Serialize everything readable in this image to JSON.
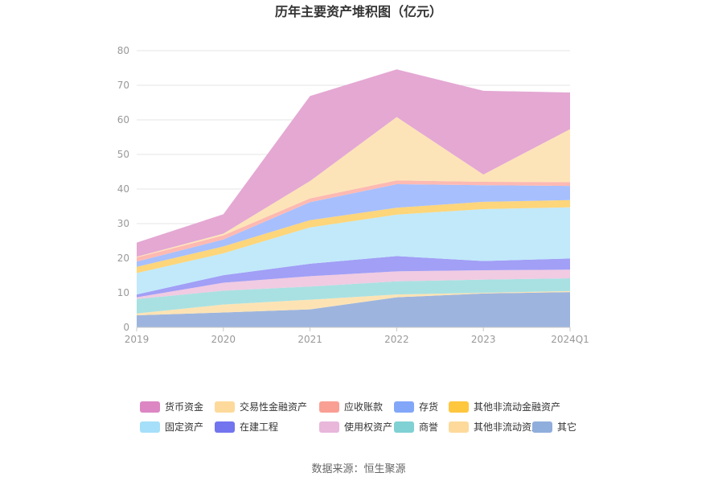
{
  "chart_data": {
    "type": "area",
    "title": "历年主要资产堆积图（亿元）",
    "x": [
      "2019",
      "2020",
      "2021",
      "2022",
      "2023",
      "2024Q1"
    ],
    "ylim": [
      0,
      80
    ],
    "yticks": [
      "0",
      "10",
      "20",
      "30",
      "40",
      "50",
      "60",
      "70",
      "80"
    ],
    "grid": true,
    "stacked": true,
    "legend_position": "bottom",
    "series": [
      {
        "name": "其它",
        "color": "#9DB5DE",
        "values": [
          3.5,
          4.3,
          5.2,
          8.7,
          9.8,
          10.2
        ]
      },
      {
        "name": "其他非流动资产",
        "color": "#FDE3B4",
        "values": [
          0.5,
          2.3,
          2.8,
          0.8,
          0.2,
          0.3
        ]
      },
      {
        "name": "商誉",
        "color": "#A9E1E2",
        "values": [
          4.2,
          4.0,
          3.8,
          3.8,
          3.8,
          3.7
        ]
      },
      {
        "name": "使用权资产",
        "color": "#F0CBE2",
        "values": [
          0.5,
          2.3,
          3.0,
          2.9,
          2.7,
          2.5
        ]
      },
      {
        "name": "在建工程",
        "color": "#A19FF6",
        "values": [
          0.8,
          2.2,
          3.6,
          4.4,
          2.7,
          3.2
        ]
      },
      {
        "name": "固定资产",
        "color": "#C1E9FA",
        "values": [
          6.2,
          6.3,
          10.5,
          12.0,
          15.0,
          14.8
        ]
      },
      {
        "name": "其他非流动金融资产",
        "color": "#FDD57A",
        "values": [
          1.8,
          2.0,
          2.1,
          2.0,
          2.1,
          2.1
        ]
      },
      {
        "name": "存货",
        "color": "#A7BFFD",
        "values": [
          1.5,
          2.0,
          5.2,
          6.8,
          4.8,
          4.1
        ]
      },
      {
        "name": "应收账款",
        "color": "#FDB9B2",
        "values": [
          1.2,
          1.2,
          1.1,
          1.1,
          1.0,
          1.1
        ]
      },
      {
        "name": "交易性金融资产",
        "color": "#FDE4B8",
        "values": [
          0.2,
          0.5,
          5.0,
          18.3,
          2.1,
          15.3
        ]
      },
      {
        "name": "货币资金",
        "color": "#E4A8D3",
        "values": [
          4.1,
          5.6,
          24.6,
          13.8,
          24.2,
          10.6
        ]
      }
    ],
    "source": "数据来源：恒生聚源"
  },
  "legend": [
    {
      "name": "货币资金",
      "color": "#DD86C4"
    },
    {
      "name": "交易性金融资产",
      "color": "#FDDA9B"
    },
    {
      "name": "应收账款",
      "color": "#FA9F94"
    },
    {
      "name": "存货",
      "color": "#83A7F8"
    },
    {
      "name": "其他非流动金融资产",
      "color": "#FEC73E"
    },
    {
      "name": "固定资产",
      "color": "#A5DFF9"
    },
    {
      "name": "在建工程",
      "color": "#7275EE"
    },
    {
      "name": "使用权资产",
      "color": "#E8B7DA"
    },
    {
      "name": "商誉",
      "color": "#80D1D3"
    },
    {
      "name": "其他非流动资产",
      "color": "#FDDA9B"
    },
    {
      "name": "其它",
      "color": "#8FAEDC"
    }
  ]
}
